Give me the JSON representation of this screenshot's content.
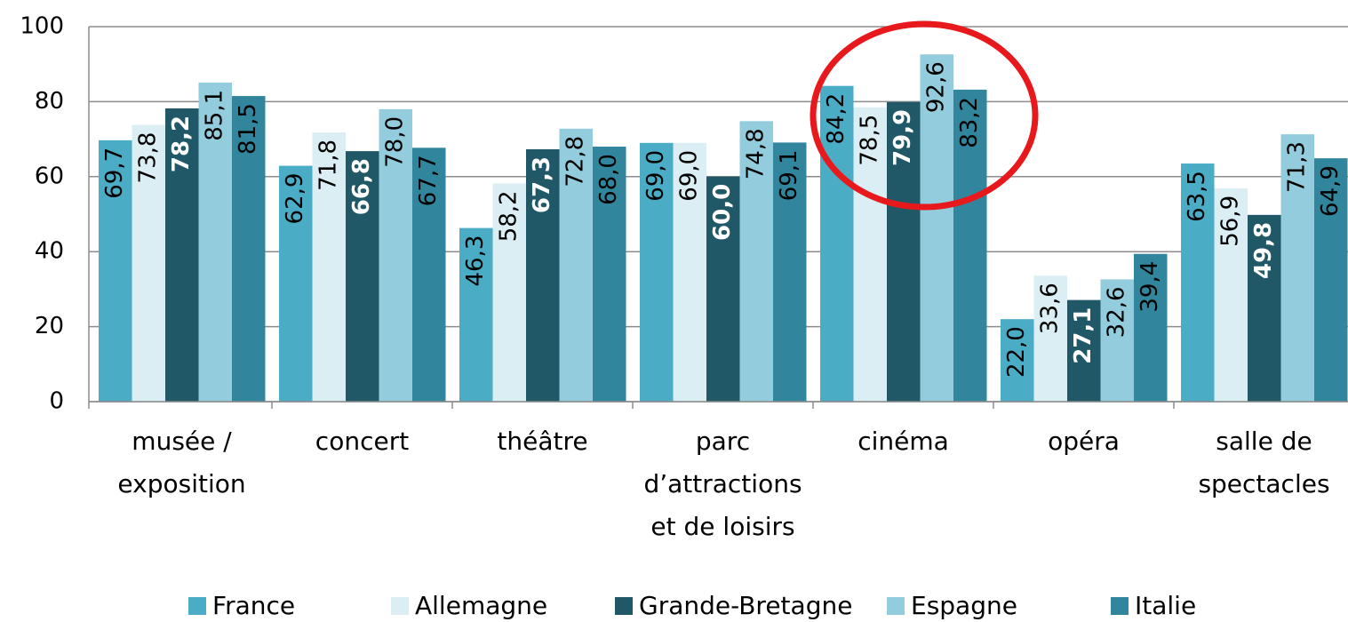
{
  "chart_data": {
    "type": "bar",
    "categories": [
      [
        "musée /",
        "exposition"
      ],
      [
        "concert"
      ],
      [
        "théâtre"
      ],
      [
        "parc",
        "d’attractions",
        "et de loisirs"
      ],
      [
        "cinéma"
      ],
      [
        "opéra"
      ],
      [
        "salle de",
        "spectacles"
      ]
    ],
    "series": [
      {
        "name": "France",
        "color": "#4bacc6",
        "values": [
          69.7,
          62.9,
          46.3,
          69.0,
          84.2,
          22.0,
          63.5
        ],
        "value_labels": [
          "69,7",
          "62,9",
          "46,3",
          "69,0",
          "84,2",
          "22,0",
          "63,5"
        ]
      },
      {
        "name": "Allemagne",
        "color": "#dbeef4",
        "values": [
          73.8,
          71.8,
          58.2,
          69.0,
          78.5,
          33.6,
          56.9
        ],
        "value_labels": [
          "73,8",
          "71,8",
          "58,2",
          "69,0",
          "78,5",
          "33,6",
          "56,9"
        ]
      },
      {
        "name": "Grande-Bretagne",
        "color": "#215868",
        "values": [
          78.2,
          66.8,
          67.3,
          60.0,
          79.9,
          27.1,
          49.8
        ],
        "value_labels": [
          "78,2",
          "66,8",
          "67,3",
          "60,0",
          "79,9",
          "27,1",
          "49,8"
        ]
      },
      {
        "name": "Espagne",
        "color": "#93cddd",
        "values": [
          85.1,
          78.0,
          72.8,
          74.8,
          92.6,
          32.6,
          71.3
        ],
        "value_labels": [
          "85,1",
          "78,0",
          "72,8",
          "74,8",
          "92,6",
          "32,6",
          "71,3"
        ]
      },
      {
        "name": "Italie",
        "color": "#31859c",
        "values": [
          81.5,
          67.7,
          68.0,
          69.1,
          83.2,
          39.4,
          64.9
        ],
        "value_labels": [
          "81,5",
          "67,7",
          "68,0",
          "69,1",
          "83,2",
          "39,4",
          "64,9"
        ]
      }
    ],
    "ylim": [
      0,
      100
    ],
    "yticks": [
      0,
      20,
      40,
      60,
      80,
      100
    ],
    "grid": true,
    "legend": "bottom"
  }
}
